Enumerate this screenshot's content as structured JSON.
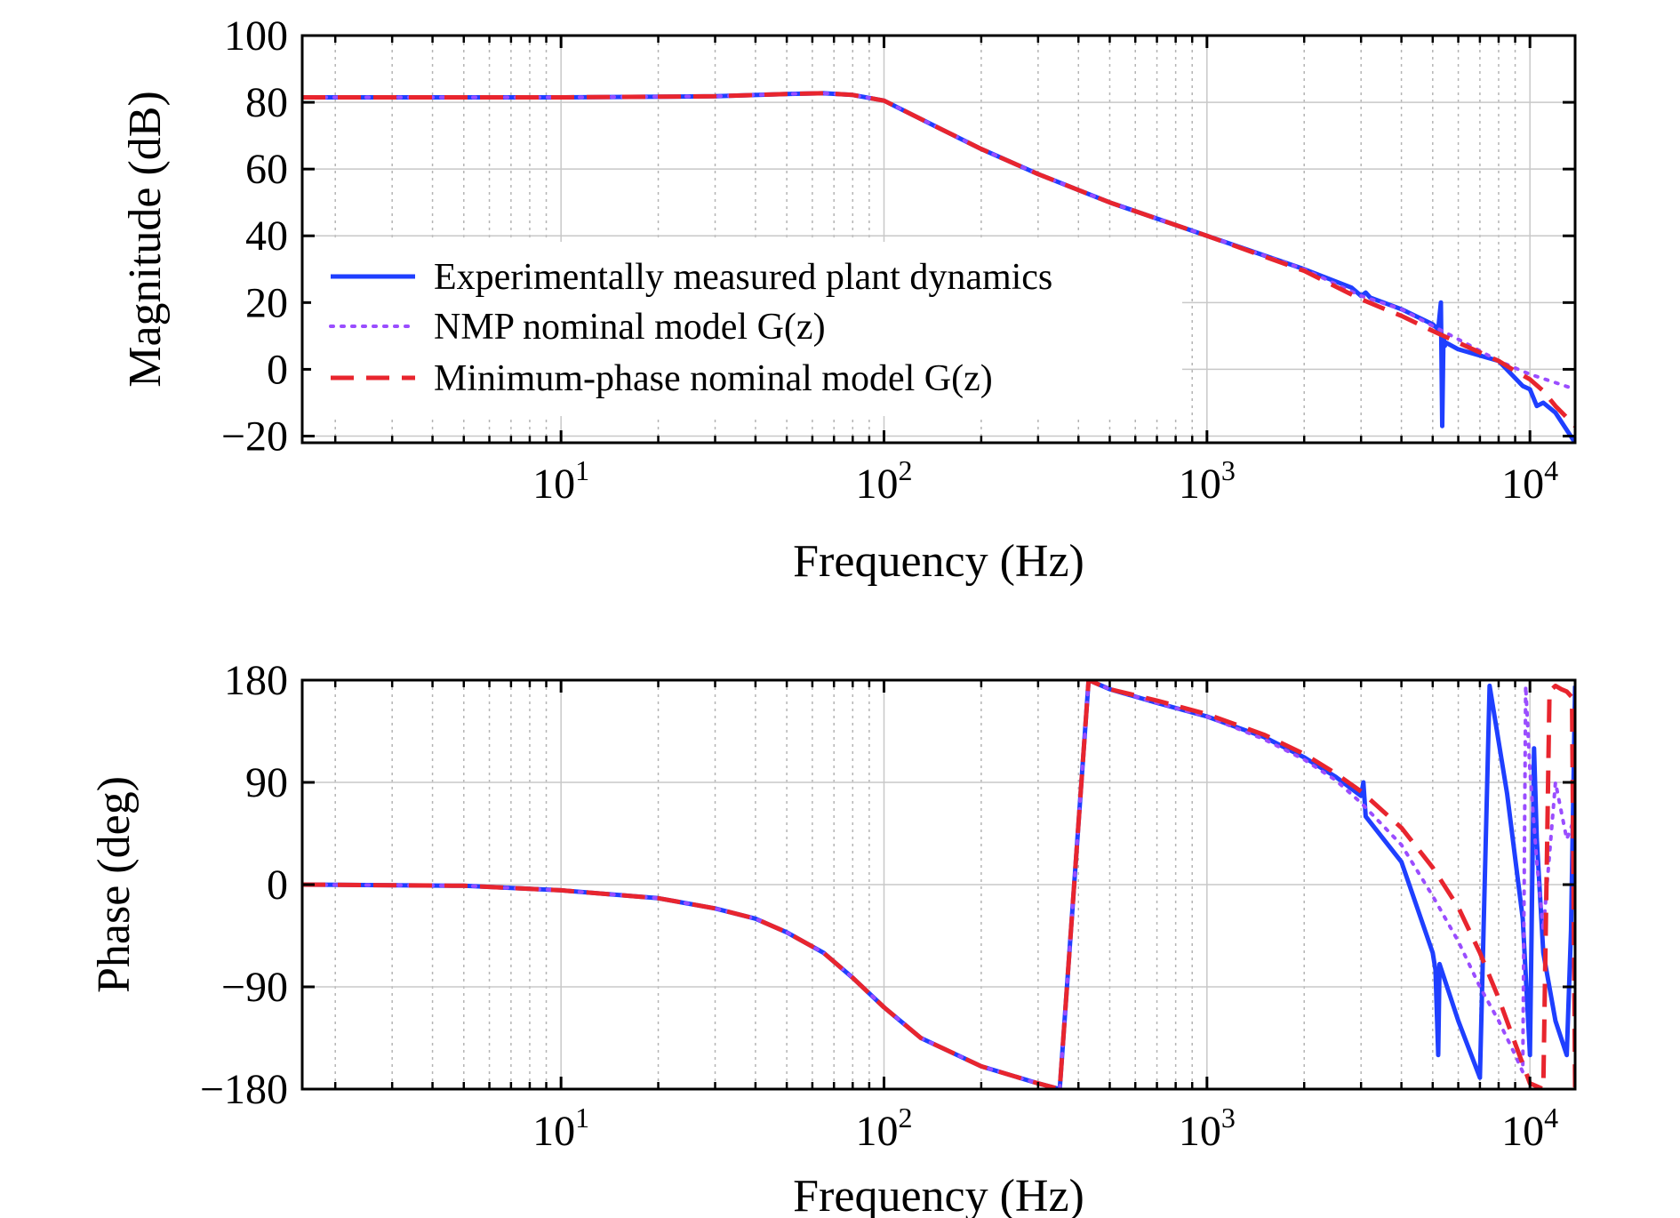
{
  "chart_data": [
    {
      "type": "line",
      "name": "magnitude",
      "xscale": "log",
      "xlim": [
        1.58,
        13800
      ],
      "ylim": [
        -22,
        100
      ],
      "xlabel": "Frequency (Hz)",
      "ylabel": "Magnitude (dB)",
      "xticks": [
        {
          "value": 10,
          "base": "10",
          "exp": "1"
        },
        {
          "value": 100,
          "base": "10",
          "exp": "2"
        },
        {
          "value": 1000,
          "base": "10",
          "exp": "3"
        },
        {
          "value": 10000,
          "base": "10",
          "exp": "4"
        }
      ],
      "yticks": [
        {
          "value": 100,
          "label": "100"
        },
        {
          "value": 80,
          "label": "80"
        },
        {
          "value": 60,
          "label": "60"
        },
        {
          "value": 40,
          "label": "40"
        },
        {
          "value": 20,
          "label": "20"
        },
        {
          "value": 0,
          "label": "0"
        },
        {
          "value": -20,
          "label": "−20"
        }
      ],
      "grid": true,
      "legend_position": "lower-left",
      "series": [
        {
          "name": "Experimentally measured plant dynamics",
          "color": "#1f3fff",
          "style": "solid",
          "x": [
            1.58,
            10,
            30,
            50,
            65,
            80,
            100,
            150,
            200,
            300,
            500,
            1000,
            2000,
            2800,
            3000,
            3100,
            3200,
            4000,
            5000,
            5200,
            5300,
            5350,
            5400,
            5450,
            5500,
            6000,
            8000,
            9500,
            10000,
            10500,
            11000,
            12000,
            13800
          ],
          "y": [
            81.5,
            81.5,
            81.8,
            82.5,
            82.7,
            82.2,
            80.5,
            72,
            66,
            58.5,
            50,
            40,
            30,
            24.5,
            22,
            23,
            21.5,
            18,
            13.5,
            12,
            20,
            -17,
            10,
            7,
            8,
            6,
            2.5,
            -5,
            -6,
            -11,
            -10,
            -13,
            -22
          ]
        },
        {
          "name": "NMP nominal model G(z)",
          "color": "#9a4dff",
          "style": "dotted",
          "x": [
            1.58,
            10,
            30,
            50,
            65,
            80,
            100,
            150,
            200,
            300,
            500,
            1000,
            2000,
            3000,
            4000,
            5000,
            6000,
            8000,
            10000,
            12000,
            13800
          ],
          "y": [
            81.5,
            81.5,
            81.8,
            82.5,
            82.7,
            82.2,
            80.5,
            72,
            66,
            58.5,
            50,
            40,
            30,
            22,
            18,
            13,
            9,
            2.5,
            -1.5,
            -4,
            -6
          ]
        },
        {
          "name": "Minimum-phase nominal model G(z)",
          "color": "#e8252e",
          "style": "dashed",
          "x": [
            1.58,
            10,
            30,
            50,
            65,
            80,
            100,
            150,
            200,
            300,
            500,
            1000,
            2000,
            3000,
            4000,
            5000,
            6000,
            8000,
            9000,
            10000,
            11000,
            12000,
            13800
          ],
          "y": [
            81.5,
            81.5,
            81.8,
            82.5,
            82.7,
            82.2,
            80.5,
            72,
            66,
            58.5,
            50,
            40,
            29.5,
            21,
            16,
            11.5,
            8,
            2.5,
            -0.5,
            -3,
            -6.5,
            -11,
            -17
          ]
        }
      ]
    },
    {
      "type": "line",
      "name": "phase",
      "xscale": "log",
      "xlim": [
        1.58,
        13800
      ],
      "ylim": [
        -180,
        180
      ],
      "xlabel": "Frequency (Hz)",
      "ylabel": "Phase (deg)",
      "xticks": [
        {
          "value": 10,
          "base": "10",
          "exp": "1"
        },
        {
          "value": 100,
          "base": "10",
          "exp": "2"
        },
        {
          "value": 1000,
          "base": "10",
          "exp": "3"
        },
        {
          "value": 10000,
          "base": "10",
          "exp": "4"
        }
      ],
      "yticks": [
        {
          "value": 180,
          "label": "180"
        },
        {
          "value": 90,
          "label": "90"
        },
        {
          "value": 0,
          "label": "0"
        },
        {
          "value": -90,
          "label": "−90"
        },
        {
          "value": -180,
          "label": "−180"
        }
      ],
      "grid": true,
      "series": [
        {
          "name": "Experimentally measured plant dynamics",
          "color": "#1f3fff",
          "style": "solid",
          "x": [
            1.58,
            5,
            10,
            20,
            30,
            40,
            50,
            65,
            80,
            100,
            130,
            200,
            300,
            350,
            430,
            500,
            700,
            1000,
            1500,
            2000,
            2500,
            3000,
            3050,
            3100,
            4000,
            5000,
            5100,
            5200,
            5250,
            6000,
            7000,
            7500,
            8500,
            9500,
            10000,
            10300,
            10500,
            11000,
            12000,
            13000,
            13400,
            13800
          ],
          "y": [
            0,
            -1,
            -5,
            -12,
            -21,
            -30,
            -42,
            -60,
            -82,
            -108,
            -135,
            -160,
            -175,
            -180,
            180,
            172,
            160,
            148,
            130,
            112,
            95,
            78,
            90,
            60,
            20,
            -60,
            -75,
            -150,
            -70,
            -120,
            -170,
            175,
            80,
            -30,
            -150,
            120,
            40,
            -60,
            -120,
            -150,
            -40,
            175
          ]
        },
        {
          "name": "NMP nominal model G(z)",
          "color": "#9a4dff",
          "style": "dotted",
          "x": [
            1.58,
            5,
            10,
            20,
            30,
            40,
            50,
            65,
            80,
            100,
            130,
            200,
            300,
            350,
            430,
            500,
            700,
            1000,
            1500,
            2000,
            2500,
            3000,
            4000,
            5000,
            6000,
            7000,
            8000,
            9000,
            9500,
            9700,
            10000,
            10500,
            11000,
            12000,
            13000,
            13800
          ],
          "y": [
            0,
            -1,
            -5,
            -12,
            -21,
            -30,
            -42,
            -60,
            -82,
            -108,
            -135,
            -160,
            -175,
            -180,
            180,
            172,
            160,
            148,
            128,
            110,
            92,
            72,
            35,
            -10,
            -50,
            -90,
            -120,
            -150,
            -165,
            175,
            100,
            20,
            -40,
            90,
            40,
            60
          ]
        },
        {
          "name": "Minimum-phase nominal model G(z)",
          "color": "#e8252e",
          "style": "dashed",
          "x": [
            1.58,
            5,
            10,
            20,
            30,
            40,
            50,
            65,
            80,
            100,
            130,
            200,
            300,
            350,
            430,
            500,
            700,
            1000,
            1500,
            2000,
            2500,
            3000,
            4000,
            5000,
            6000,
            7000,
            8000,
            9000,
            10000,
            11000,
            11500,
            12000,
            12500,
            13000,
            13500,
            13800
          ],
          "y": [
            0,
            -1,
            -5,
            -12,
            -21,
            -30,
            -42,
            -60,
            -82,
            -108,
            -135,
            -160,
            -175,
            -180,
            180,
            172,
            162,
            150,
            132,
            115,
            98,
            82,
            50,
            15,
            -20,
            -60,
            -100,
            -140,
            -175,
            -180,
            170,
            175,
            172,
            170,
            165,
            -180
          ]
        }
      ]
    }
  ]
}
